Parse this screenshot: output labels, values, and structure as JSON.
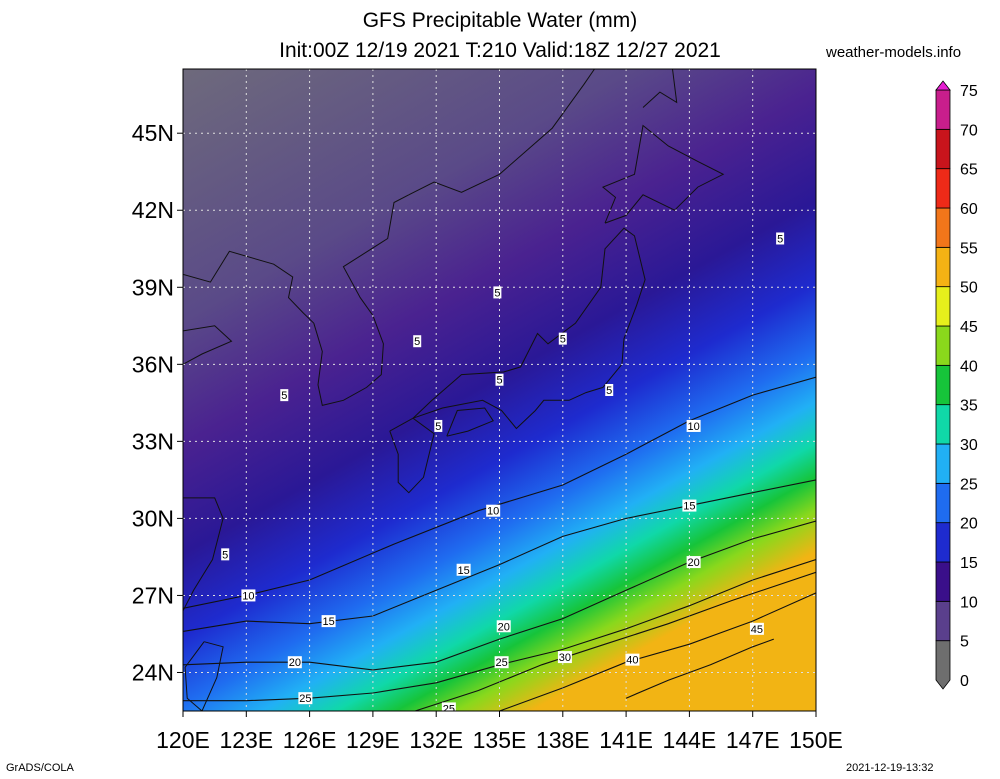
{
  "header": {
    "title_line1": "GFS Precipitable Water (mm)",
    "title_line2": "Init:00Z 12/19 2021 T:210 Valid:18Z 12/27 2021",
    "site": "weather-models.info"
  },
  "footer": {
    "left": "GrADS/COLA",
    "right": "2021-12-19-13:32"
  },
  "map": {
    "lon_range": [
      120,
      150
    ],
    "lat_range": [
      22.5,
      47.5
    ],
    "lon_ticks": [
      {
        "v": 120,
        "label": "120E"
      },
      {
        "v": 123,
        "label": "123E"
      },
      {
        "v": 126,
        "label": "126E"
      },
      {
        "v": 129,
        "label": "129E"
      },
      {
        "v": 132,
        "label": "132E"
      },
      {
        "v": 135,
        "label": "135E"
      },
      {
        "v": 138,
        "label": "138E"
      },
      {
        "v": 141,
        "label": "141E"
      },
      {
        "v": 144,
        "label": "144E"
      },
      {
        "v": 147,
        "label": "147E"
      },
      {
        "v": 150,
        "label": "150E"
      }
    ],
    "lat_ticks": [
      {
        "v": 24,
        "label": "24N"
      },
      {
        "v": 27,
        "label": "27N"
      },
      {
        "v": 30,
        "label": "30N"
      },
      {
        "v": 33,
        "label": "33N"
      },
      {
        "v": 36,
        "label": "36N"
      },
      {
        "v": 39,
        "label": "39N"
      },
      {
        "v": 42,
        "label": "42N"
      },
      {
        "v": 45,
        "label": "45N"
      }
    ],
    "contours": [
      {
        "level": 10,
        "points": [
          [
            120,
            26.5
          ],
          [
            123,
            27.0
          ],
          [
            126,
            27.6
          ],
          [
            130,
            29.0
          ],
          [
            134,
            30.3
          ],
          [
            138,
            31.3
          ],
          [
            141,
            32.5
          ],
          [
            144,
            33.8
          ],
          [
            147,
            34.8
          ],
          [
            150,
            35.5
          ]
        ]
      },
      {
        "level": 15,
        "points": [
          [
            120,
            25.6
          ],
          [
            123,
            26.0
          ],
          [
            126,
            25.9
          ],
          [
            129,
            26.2
          ],
          [
            132,
            27.2
          ],
          [
            135,
            28.2
          ],
          [
            138,
            29.3
          ],
          [
            141,
            30.0
          ],
          [
            144,
            30.5
          ],
          [
            147,
            31.0
          ],
          [
            150,
            31.5
          ]
        ]
      },
      {
        "level": 20,
        "points": [
          [
            120,
            24.3
          ],
          [
            123,
            24.4
          ],
          [
            126,
            24.4
          ],
          [
            129,
            24.1
          ],
          [
            132,
            24.4
          ],
          [
            135,
            25.3
          ],
          [
            138,
            26.1
          ],
          [
            141,
            27.2
          ],
          [
            144,
            28.3
          ],
          [
            147,
            29.2
          ],
          [
            150,
            29.9
          ]
        ]
      },
      {
        "level": 25,
        "points": [
          [
            120,
            22.9
          ],
          [
            123,
            22.9
          ],
          [
            126,
            23.0
          ],
          [
            129,
            23.2
          ],
          [
            132,
            23.6
          ],
          [
            135,
            24.3
          ],
          [
            138,
            24.9
          ],
          [
            141,
            25.7
          ],
          [
            144,
            26.6
          ],
          [
            147,
            27.6
          ],
          [
            150,
            28.4
          ]
        ]
      },
      {
        "level": 30,
        "points": [
          [
            131,
            22.5
          ],
          [
            134,
            23.3
          ],
          [
            137,
            24.3
          ],
          [
            140,
            25.1
          ],
          [
            143,
            25.9
          ],
          [
            146,
            26.8
          ],
          [
            150,
            27.9
          ]
        ]
      },
      {
        "level": 40,
        "points": [
          [
            135,
            22.5
          ],
          [
            138,
            23.4
          ],
          [
            141,
            24.4
          ],
          [
            144,
            25.1
          ],
          [
            147,
            26.0
          ],
          [
            150,
            27.1
          ]
        ]
      },
      {
        "level": 45,
        "points": [
          [
            141,
            23.0
          ],
          [
            143,
            23.7
          ],
          [
            145,
            24.3
          ],
          [
            147,
            25.0
          ],
          [
            148,
            25.3
          ]
        ]
      }
    ],
    "contour_labels": [
      {
        "text": "5",
        "lon": 148.3,
        "lat": 40.9
      },
      {
        "text": "5",
        "lon": 134.9,
        "lat": 38.8
      },
      {
        "text": "5",
        "lon": 138.0,
        "lat": 37.0
      },
      {
        "text": "5",
        "lon": 131.1,
        "lat": 36.9
      },
      {
        "text": "5",
        "lon": 135.0,
        "lat": 35.4
      },
      {
        "text": "5",
        "lon": 140.2,
        "lat": 35.0
      },
      {
        "text": "5",
        "lon": 124.8,
        "lat": 34.8
      },
      {
        "text": "5",
        "lon": 132.1,
        "lat": 33.6
      },
      {
        "text": "5",
        "lon": 122.0,
        "lat": 28.6
      },
      {
        "text": "10",
        "lon": 144.2,
        "lat": 33.6
      },
      {
        "text": "10",
        "lon": 134.7,
        "lat": 30.3
      },
      {
        "text": "10",
        "lon": 123.1,
        "lat": 27.0
      },
      {
        "text": "15",
        "lon": 144.0,
        "lat": 30.5
      },
      {
        "text": "15",
        "lon": 133.3,
        "lat": 28.0
      },
      {
        "text": "15",
        "lon": 126.9,
        "lat": 26.0
      },
      {
        "text": "20",
        "lon": 144.2,
        "lat": 28.3
      },
      {
        "text": "20",
        "lon": 135.2,
        "lat": 25.8
      },
      {
        "text": "20",
        "lon": 125.3,
        "lat": 24.4
      },
      {
        "text": "25",
        "lon": 135.1,
        "lat": 24.4
      },
      {
        "text": "25",
        "lon": 125.8,
        "lat": 23.0
      },
      {
        "text": "25",
        "lon": 132.6,
        "lat": 22.6
      },
      {
        "text": "30",
        "lon": 138.1,
        "lat": 24.6
      },
      {
        "text": "40",
        "lon": 141.3,
        "lat": 24.5
      },
      {
        "text": "45",
        "lon": 147.2,
        "lat": 25.7
      }
    ]
  },
  "colorbar": {
    "levels": [
      0,
      5,
      10,
      15,
      20,
      25,
      30,
      35,
      40,
      45,
      50,
      55,
      60,
      65,
      70,
      75
    ],
    "colors": [
      "#6e6e6e",
      "#5a3f8c",
      "#3a0f8a",
      "#1e2bcf",
      "#1f6cf0",
      "#21b0f5",
      "#10d8a8",
      "#16c43a",
      "#8ad81c",
      "#e6ef1c",
      "#f5b214",
      "#f2761a",
      "#ee2a18",
      "#c8141c",
      "#c81e8c",
      "#e61ed2"
    ]
  }
}
